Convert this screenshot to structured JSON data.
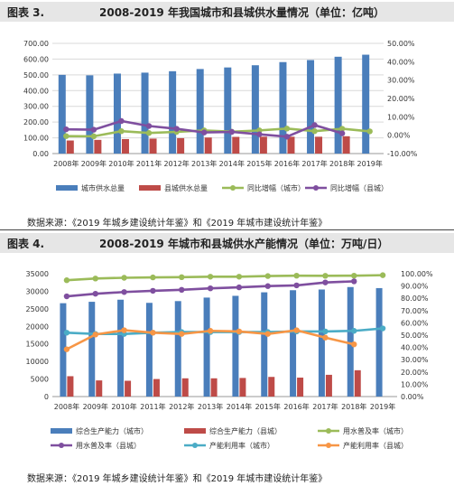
{
  "figure1": {
    "label": "图表 3.",
    "title": "2008-2019 年我国城市和县城供水量情况（单位：亿吨）",
    "source": "数据来源：《2019 年城乡建设统计年鉴》和《2019 年城市建设统计年鉴》"
  },
  "figure2": {
    "label": "图表 4.",
    "title": "2008-2019 年城市和县城供水产能情况（单位：万吨/日）",
    "source": "数据来源：《2019 年城乡建设统计年鉴》和《2019 年城市建设统计年鉴》"
  },
  "chart_data": [
    {
      "type": "bar",
      "title": "2008-2019 年我国城市和县城供水量情况（单位：亿吨）",
      "categories": [
        "2008年",
        "2009年",
        "2010年",
        "2011年",
        "2012年",
        "2013年",
        "2014年",
        "2015年",
        "2016年",
        "2017年",
        "2018年",
        "2019年"
      ],
      "y_left": {
        "ticks": [
          "0.00",
          "100.00",
          "200.00",
          "300.00",
          "400.00",
          "500.00",
          "600.00",
          "700.00"
        ],
        "min": 0,
        "max": 700
      },
      "y_right": {
        "ticks": [
          "-10.00%",
          "0.00%",
          "10.00%",
          "20.00%",
          "30.00%",
          "40.00%",
          "50.00%"
        ],
        "min": -10,
        "max": 50
      },
      "grid": true,
      "legend_position": "bottom",
      "series": [
        {
          "name": "城市供水总量",
          "kind": "bar",
          "axis": "left",
          "color": "#4a7ebb",
          "values": [
            500,
            497,
            508,
            514,
            523,
            537,
            547,
            561,
            581,
            594,
            615,
            628
          ]
        },
        {
          "name": "县城供水总量",
          "kind": "bar",
          "axis": "left",
          "color": "#be4b48",
          "values": [
            83,
            87,
            92,
            95,
            98,
            102,
            106,
            107,
            107,
            107,
            110,
            null
          ]
        },
        {
          "name": "同比增幅（城市）",
          "kind": "line",
          "axis": "right",
          "color": "#9bbb59",
          "values": [
            -0.5,
            -0.6,
            2.2,
            1.2,
            1.8,
            2.6,
            1.9,
            2.6,
            3.6,
            2.2,
            3.5,
            2.1
          ]
        },
        {
          "name": "同比增幅（县城）",
          "kind": "line",
          "axis": "right",
          "color": "#7f4f9f",
          "values": [
            3.2,
            3.0,
            7.7,
            5.0,
            3.5,
            1.5,
            1.8,
            0.5,
            -0.8,
            5.5,
            1.0,
            null
          ]
        }
      ]
    },
    {
      "type": "bar",
      "title": "2008-2019 年城市和县城供水产能情况（单位：万吨/日）",
      "categories": [
        "2008年",
        "2009年",
        "2010年",
        "2011年",
        "2012年",
        "2013年",
        "2014年",
        "2015年",
        "2016年",
        "2017年",
        "2018年",
        "2019年"
      ],
      "y_left": {
        "ticks": [
          "0",
          "5000",
          "10000",
          "15000",
          "20000",
          "25000",
          "30000",
          "35000"
        ],
        "min": 0,
        "max": 35000
      },
      "y_right": {
        "ticks": [
          "0.00%",
          "10.00%",
          "20.00%",
          "30.00%",
          "40.00%",
          "50.00%",
          "60.00%",
          "70.00%",
          "80.00%",
          "90.00%",
          "100.00%"
        ],
        "min": 0,
        "max": 100
      },
      "grid": false,
      "legend_position": "bottom",
      "series": [
        {
          "name": "综合生产能力（城市）",
          "kind": "bar",
          "axis": "left",
          "color": "#4a7ebb",
          "values": [
            26600,
            27000,
            27600,
            26700,
            27200,
            28200,
            28700,
            29700,
            30300,
            30500,
            31200,
            30900
          ]
        },
        {
          "name": "综合生产能力（县城）",
          "kind": "bar",
          "axis": "left",
          "color": "#be4b48",
          "values": [
            5800,
            4600,
            4500,
            5000,
            5200,
            5200,
            5300,
            5600,
            5400,
            6200,
            7500,
            null
          ]
        },
        {
          "name": "用水普及率（城市）",
          "kind": "line",
          "axis": "right",
          "color": "#9bbb59",
          "values": [
            94.7,
            96.1,
            96.7,
            97.0,
            97.2,
            97.6,
            97.6,
            98.1,
            98.4,
            98.3,
            98.4,
            98.8
          ]
        },
        {
          "name": "用水普及率（县城）",
          "kind": "line",
          "axis": "right",
          "color": "#7f4f9f",
          "values": [
            81.6,
            83.7,
            85.1,
            86.1,
            86.9,
            88.1,
            88.9,
            89.9,
            90.5,
            92.9,
            93.8,
            null
          ]
        },
        {
          "name": "产能利用率（城市）",
          "kind": "line",
          "axis": "right",
          "color": "#4bacc6",
          "values": [
            52.0,
            51.0,
            51.0,
            52.0,
            52.5,
            52.5,
            52.5,
            52.5,
            53.0,
            53.0,
            53.5,
            55.5
          ]
        },
        {
          "name": "产能利用率（县城）",
          "kind": "line",
          "axis": "right",
          "color": "#f79646",
          "values": [
            38.5,
            50.5,
            54.0,
            52.0,
            51.0,
            53.5,
            53.0,
            51.0,
            54.0,
            48.0,
            42.5,
            null
          ]
        }
      ]
    }
  ]
}
